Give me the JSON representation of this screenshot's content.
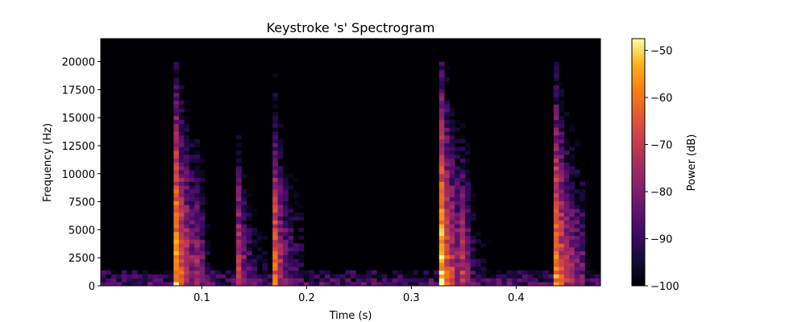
{
  "chart_data": {
    "type": "heatmap",
    "title": "Keystroke 's' Spectrogram",
    "xlabel": "Time (s)",
    "ylabel": "Frequency (Hz)",
    "xlim": [
      0.0035,
      0.4805
    ],
    "ylim": [
      0,
      22050
    ],
    "xticks": [
      0.1,
      0.2,
      0.3,
      0.4
    ],
    "xtick_labels": [
      "0.1",
      "0.2",
      "0.3",
      "0.4"
    ],
    "yticks": [
      0,
      2500,
      5000,
      7500,
      10000,
      12500,
      15000,
      17500,
      20000
    ],
    "ytick_labels": [
      "0",
      "2500",
      "5000",
      "7500",
      "10000",
      "12500",
      "15000",
      "17500",
      "20000"
    ],
    "colormap": "inferno",
    "colorbar": {
      "label": "Power (dB)",
      "range": [
        -100,
        -47.5
      ],
      "ticks": [
        -100,
        -90,
        -80,
        -70,
        -60,
        -50
      ],
      "tick_labels": [
        "−100",
        "−90",
        "−80",
        "−70",
        "−60",
        "−50"
      ]
    },
    "time_frames": 96,
    "frequency_bins": 64,
    "background_db": -100,
    "events": [
      {
        "onset_s": 0.074,
        "peak_db": -49,
        "max_freq_hz": 20000
      },
      {
        "onset_s": 0.094,
        "peak_db": -72,
        "max_freq_hz": 19000
      },
      {
        "onset_s": 0.133,
        "peak_db": -62,
        "max_freq_hz": 16000
      },
      {
        "onset_s": 0.168,
        "peak_db": -57,
        "max_freq_hz": 19000
      },
      {
        "onset_s": 0.328,
        "peak_db": -48,
        "max_freq_hz": 20000
      },
      {
        "onset_s": 0.347,
        "peak_db": -66,
        "max_freq_hz": 17500
      },
      {
        "onset_s": 0.435,
        "peak_db": -48,
        "max_freq_hz": 20000
      },
      {
        "onset_s": 0.452,
        "peak_db": -70,
        "max_freq_hz": 10000
      }
    ]
  }
}
